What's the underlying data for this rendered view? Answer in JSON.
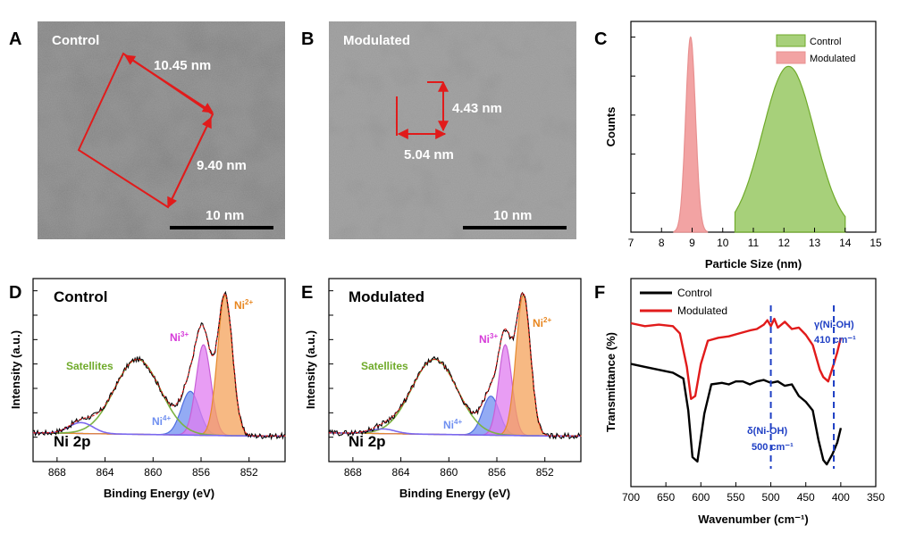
{
  "panels": {
    "A": {
      "letter": "A",
      "title": "Control",
      "dim1": "10.45 nm",
      "dim2": "9.40 nm",
      "scalebar": "10 nm"
    },
    "B": {
      "letter": "B",
      "title": "Modulated",
      "dim1": "4.43 nm",
      "dim2": "5.04 nm",
      "scalebar": "10 nm"
    },
    "C": {
      "letter": "C"
    },
    "D": {
      "letter": "D",
      "title": "Control",
      "element": "Ni 2p",
      "xlabel": "Binding Energy (eV)",
      "ylabel": "Intensity (a.u.)",
      "peaks": {
        "satellites": "Satellites",
        "ni4": "Ni",
        "ni4_sup": "4+",
        "ni3": "Ni",
        "ni3_sup": "3+",
        "ni2": "Ni",
        "ni2_sup": "2+"
      }
    },
    "E": {
      "letter": "E",
      "title": "Modulated",
      "element": "Ni 2p",
      "xlabel": "Binding Energy (eV)",
      "ylabel": "Intensity (a.u.)",
      "peaks": {
        "satellites": "Satellites",
        "ni4": "Ni",
        "ni4_sup": "4+",
        "ni3": "Ni",
        "ni3_sup": "3+",
        "ni2": "Ni",
        "ni2_sup": "2+"
      }
    },
    "F": {
      "letter": "F"
    }
  },
  "colors": {
    "control_green": "#a7d07a",
    "modulated_red": "#f2a3a3",
    "ni2": "#f4a259",
    "ni3": "#e07cf0",
    "ni4": "#6f8ff0",
    "sat": "#6faa2a",
    "red_line": "#e11b1b",
    "blue_dash": "#1f3fc4"
  },
  "chart_data": [
    {
      "panel": "C",
      "type": "area",
      "title": "",
      "xlabel": "Particle Size (nm)",
      "ylabel": "Counts",
      "xlim": [
        7,
        15
      ],
      "ylim": [
        0,
        1.08
      ],
      "xticks": [
        "7",
        "8",
        "9",
        "10",
        "11",
        "12",
        "13",
        "14",
        "15"
      ],
      "legend": [
        "Control",
        "Modulated"
      ],
      "series": [
        {
          "name": "Control",
          "mean": 12.15,
          "sd": 0.85,
          "range": [
            10.4,
            14.0
          ],
          "peak": 0.85
        },
        {
          "name": "Modulated",
          "mean": 8.95,
          "sd": 0.16,
          "range": [
            8.4,
            9.5
          ],
          "peak": 1.0
        }
      ]
    },
    {
      "panel": "D",
      "type": "area",
      "xlabel": "Binding Energy (eV)",
      "ylabel": "Intensity (a.u.)",
      "xlim": [
        870,
        849
      ],
      "xticks": [
        "868",
        "864",
        "860",
        "856",
        "852"
      ],
      "components": [
        {
          "name": "Satellites",
          "center": 861.3,
          "height": 0.48,
          "width": 1.9
        },
        {
          "name": "Ni4+",
          "center": 856.9,
          "height": 0.28,
          "width": 0.75
        },
        {
          "name": "Ni3+",
          "center": 855.8,
          "height": 0.58,
          "width": 0.62
        },
        {
          "name": "Ni2+",
          "center": 854.0,
          "height": 0.9,
          "width": 0.62
        },
        {
          "name": "minor",
          "center": 866.0,
          "height": 0.07,
          "width": 1.0
        }
      ]
    },
    {
      "panel": "E",
      "type": "area",
      "xlabel": "Binding Energy (eV)",
      "ylabel": "Intensity (a.u.)",
      "xlim": [
        870,
        849
      ],
      "xticks": [
        "868",
        "864",
        "860",
        "856",
        "852"
      ],
      "components": [
        {
          "name": "Satellites",
          "center": 861.2,
          "height": 0.48,
          "width": 1.9
        },
        {
          "name": "Ni4+",
          "center": 856.5,
          "height": 0.25,
          "width": 0.7
        },
        {
          "name": "Ni3+",
          "center": 855.3,
          "height": 0.58,
          "width": 0.55
        },
        {
          "name": "Ni2+",
          "center": 853.8,
          "height": 0.9,
          "width": 0.6
        },
        {
          "name": "minor",
          "center": 865.5,
          "height": 0.03,
          "width": 1.0
        }
      ]
    },
    {
      "panel": "F",
      "type": "line",
      "xlabel": "Wavenumber (cm⁻¹)",
      "ylabel": "Transmittance (%)",
      "xlim": [
        700,
        350
      ],
      "xticks": [
        "700",
        "650",
        "600",
        "550",
        "500",
        "450",
        "400",
        "350"
      ],
      "legend": [
        "Control",
        "Modulated"
      ],
      "annotations": [
        {
          "label": "γ(Ni-OH)",
          "value": "410 cm⁻¹",
          "x": 410
        },
        {
          "label": "δ(Ni-OH)",
          "value": "500 cm⁻¹",
          "x": 500
        }
      ],
      "series": [
        {
          "name": "Control",
          "x": [
            700,
            680,
            660,
            640,
            625,
            618,
            612,
            605,
            595,
            585,
            570,
            560,
            550,
            540,
            530,
            520,
            510,
            500,
            490,
            480,
            470,
            460,
            450,
            440,
            432,
            425,
            420,
            412,
            405,
            400
          ],
          "y": [
            0.72,
            0.7,
            0.68,
            0.66,
            0.62,
            0.4,
            0.08,
            0.05,
            0.38,
            0.58,
            0.59,
            0.58,
            0.6,
            0.6,
            0.58,
            0.6,
            0.61,
            0.59,
            0.6,
            0.57,
            0.58,
            0.5,
            0.46,
            0.4,
            0.2,
            0.06,
            0.03,
            0.1,
            0.18,
            0.28
          ]
        },
        {
          "name": "Modulated",
          "x": [
            700,
            680,
            660,
            640,
            630,
            620,
            614,
            608,
            600,
            590,
            575,
            560,
            545,
            530,
            520,
            510,
            505,
            500,
            495,
            490,
            480,
            470,
            460,
            450,
            440,
            430,
            425,
            418,
            410,
            405,
            400
          ],
          "y": [
            1.0,
            0.98,
            0.99,
            0.98,
            0.93,
            0.7,
            0.48,
            0.5,
            0.72,
            0.88,
            0.9,
            0.91,
            0.93,
            0.95,
            0.96,
            0.99,
            1.02,
            0.98,
            1.03,
            0.97,
            1.01,
            0.96,
            0.97,
            0.92,
            0.85,
            0.68,
            0.63,
            0.6,
            0.72,
            0.8,
            0.9
          ]
        }
      ]
    }
  ]
}
